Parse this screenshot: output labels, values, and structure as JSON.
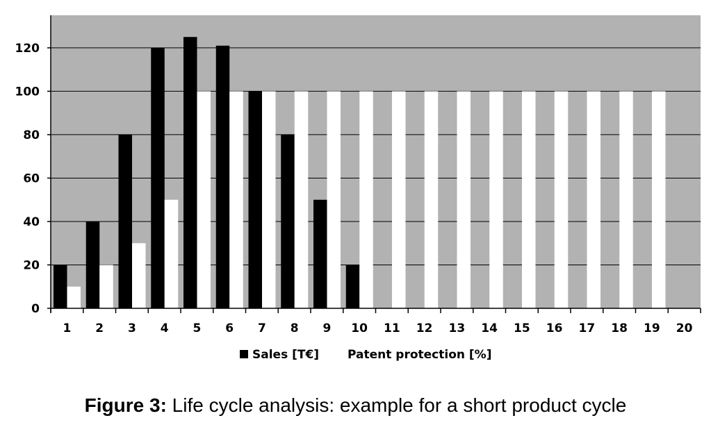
{
  "chart_data": {
    "type": "bar",
    "categories": [
      "1",
      "2",
      "3",
      "4",
      "5",
      "6",
      "7",
      "8",
      "9",
      "10",
      "11",
      "12",
      "13",
      "14",
      "15",
      "16",
      "17",
      "18",
      "19",
      "20"
    ],
    "series": [
      {
        "name": "Sales [T€]",
        "color": "#000000",
        "values": [
          20,
          40,
          80,
          120,
          125,
          121,
          100,
          80,
          50,
          20,
          0,
          0,
          0,
          0,
          0,
          0,
          0,
          0,
          0,
          0
        ]
      },
      {
        "name": "Patent protection [%]",
        "color": "#ffffff",
        "values": [
          10,
          20,
          30,
          50,
          100,
          100,
          100,
          100,
          100,
          100,
          100,
          100,
          100,
          100,
          100,
          100,
          100,
          100,
          100,
          0
        ]
      }
    ],
    "ylim": [
      0,
      135
    ],
    "yticks": [
      0,
      20,
      40,
      60,
      80,
      100,
      120
    ],
    "grid": true,
    "plot_background": "#b2b2b2",
    "legend_position": "bottom-center"
  },
  "caption": {
    "lead": "Figure 3:",
    "text": " Life cycle analysis: example for a short product cycle"
  }
}
